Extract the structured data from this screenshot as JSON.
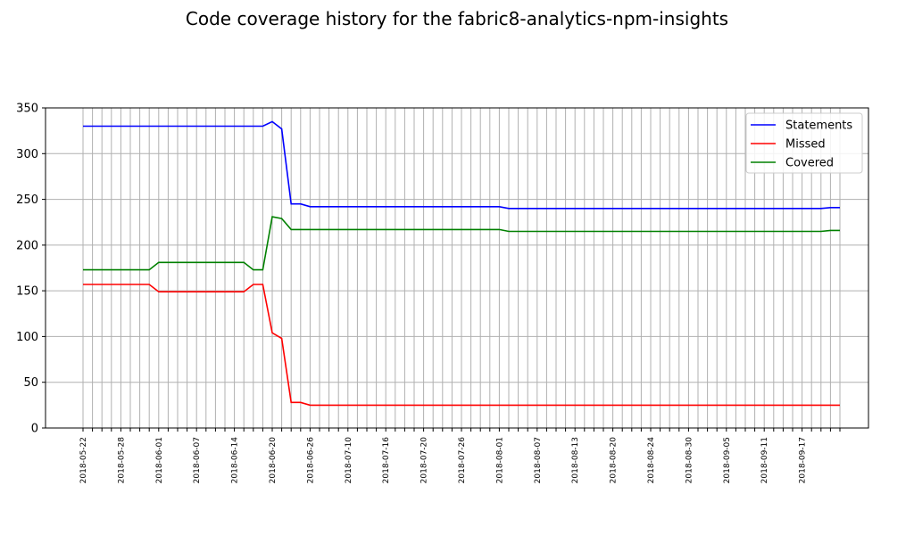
{
  "chart_data": {
    "type": "line",
    "title": "Code coverage history for the fabric8-analytics-npm-insights",
    "xlabel": "",
    "ylabel": "",
    "ylim": [
      0,
      350
    ],
    "yticks": [
      0,
      50,
      100,
      150,
      200,
      250,
      300,
      350
    ],
    "grid": true,
    "legend_position": "top-right",
    "x_labels": [
      "2018-05-22",
      "2018-05-28",
      "2018-06-01",
      "2018-06-07",
      "2018-06-14",
      "2018-06-20",
      "2018-06-26",
      "2018-07-10",
      "2018-07-16",
      "2018-07-20",
      "2018-07-26",
      "2018-08-01",
      "2018-08-07",
      "2018-08-13",
      "2018-08-20",
      "2018-08-24",
      "2018-08-30",
      "2018-09-05",
      "2018-09-11",
      "2018-09-17"
    ],
    "series": [
      {
        "name": "Statements",
        "color": "#0000ff",
        "values": [
          330,
          330,
          330,
          330,
          330,
          330,
          330,
          330,
          330,
          330,
          330,
          330,
          330,
          330,
          330,
          330,
          330,
          330,
          330,
          330,
          335,
          327,
          245,
          245,
          242,
          242,
          242,
          242,
          242,
          242,
          242,
          242,
          242,
          242,
          242,
          242,
          242,
          242,
          242,
          242,
          242,
          242,
          242,
          242,
          242,
          240,
          240,
          240,
          240,
          240,
          240,
          240,
          240,
          240,
          240,
          240,
          240,
          240,
          240,
          240,
          240,
          240,
          240,
          240,
          240,
          240,
          240,
          240,
          240,
          240,
          240,
          240,
          240,
          240,
          240,
          240,
          240,
          240,
          240,
          241,
          241
        ]
      },
      {
        "name": "Missed",
        "color": "#ff0000",
        "values": [
          157,
          157,
          157,
          157,
          157,
          157,
          157,
          157,
          149,
          149,
          149,
          149,
          149,
          149,
          149,
          149,
          149,
          149,
          157,
          157,
          104,
          98,
          28,
          28,
          25,
          25,
          25,
          25,
          25,
          25,
          25,
          25,
          25,
          25,
          25,
          25,
          25,
          25,
          25,
          25,
          25,
          25,
          25,
          25,
          25,
          25,
          25,
          25,
          25,
          25,
          25,
          25,
          25,
          25,
          25,
          25,
          25,
          25,
          25,
          25,
          25,
          25,
          25,
          25,
          25,
          25,
          25,
          25,
          25,
          25,
          25,
          25,
          25,
          25,
          25,
          25,
          25,
          25,
          25,
          25,
          25
        ]
      },
      {
        "name": "Covered",
        "color": "#008000",
        "values": [
          173,
          173,
          173,
          173,
          173,
          173,
          173,
          173,
          181,
          181,
          181,
          181,
          181,
          181,
          181,
          181,
          181,
          181,
          173,
          173,
          231,
          229,
          217,
          217,
          217,
          217,
          217,
          217,
          217,
          217,
          217,
          217,
          217,
          217,
          217,
          217,
          217,
          217,
          217,
          217,
          217,
          217,
          217,
          217,
          217,
          215,
          215,
          215,
          215,
          215,
          215,
          215,
          215,
          215,
          215,
          215,
          215,
          215,
          215,
          215,
          215,
          215,
          215,
          215,
          215,
          215,
          215,
          215,
          215,
          215,
          215,
          215,
          215,
          215,
          215,
          215,
          215,
          215,
          215,
          216,
          216
        ]
      }
    ]
  }
}
